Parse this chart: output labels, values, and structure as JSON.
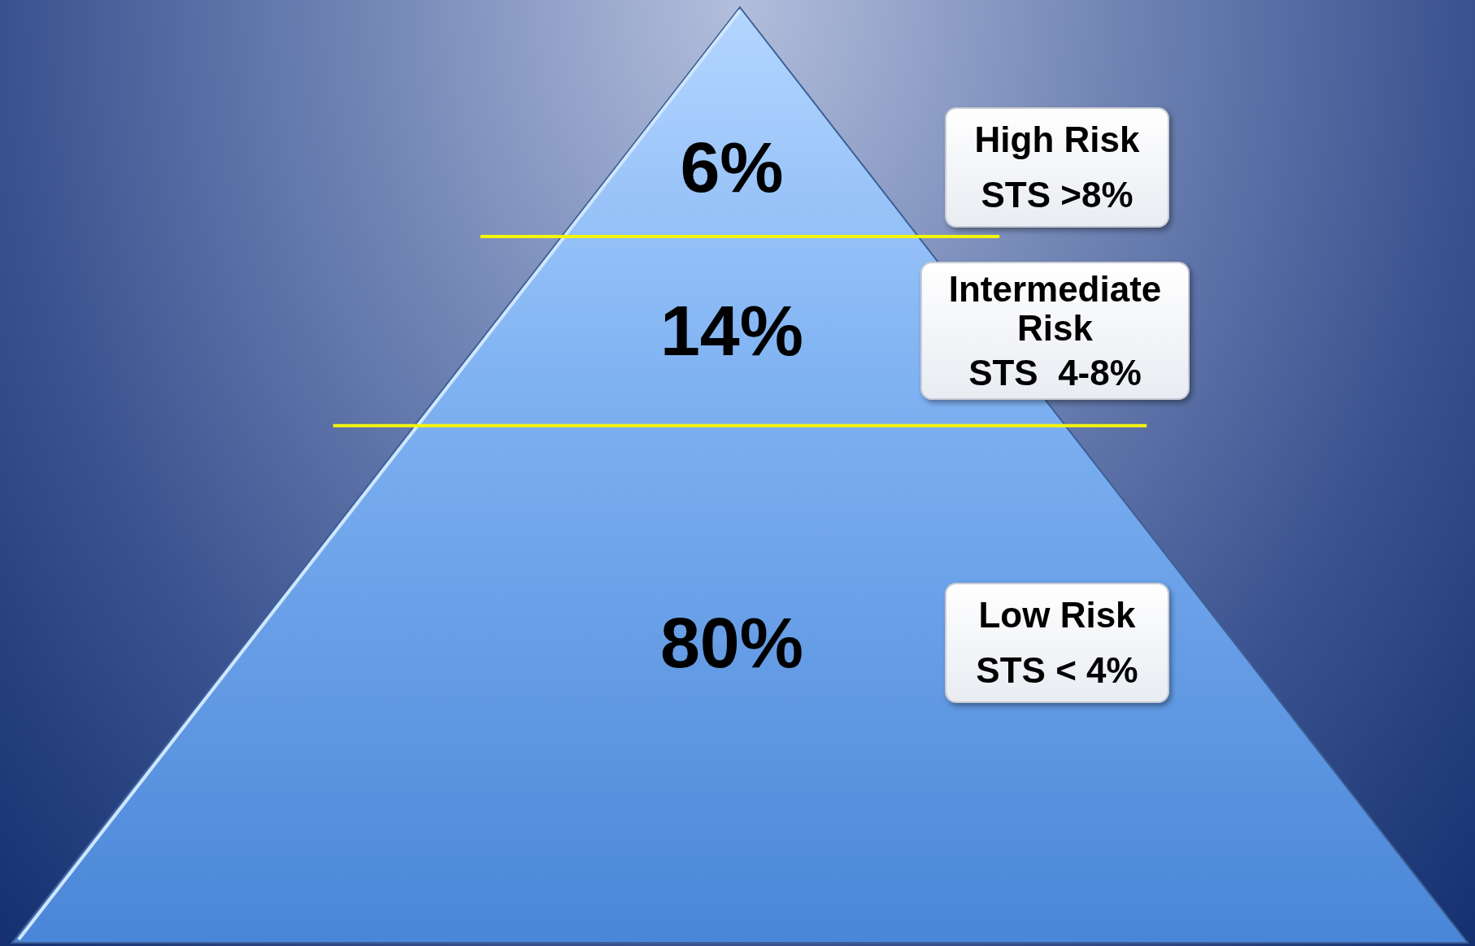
{
  "chart_data": {
    "type": "other",
    "categories": [
      "High Risk",
      "Intermediate Risk",
      "Low Risk"
    ],
    "values": [
      6,
      14,
      80
    ],
    "value_labels": [
      "6%",
      "14%",
      "80%"
    ],
    "annotations": [
      "STS >8%",
      "STS  4-8%",
      "STS < 4%"
    ],
    "color": "#7fb2f2"
  }
}
